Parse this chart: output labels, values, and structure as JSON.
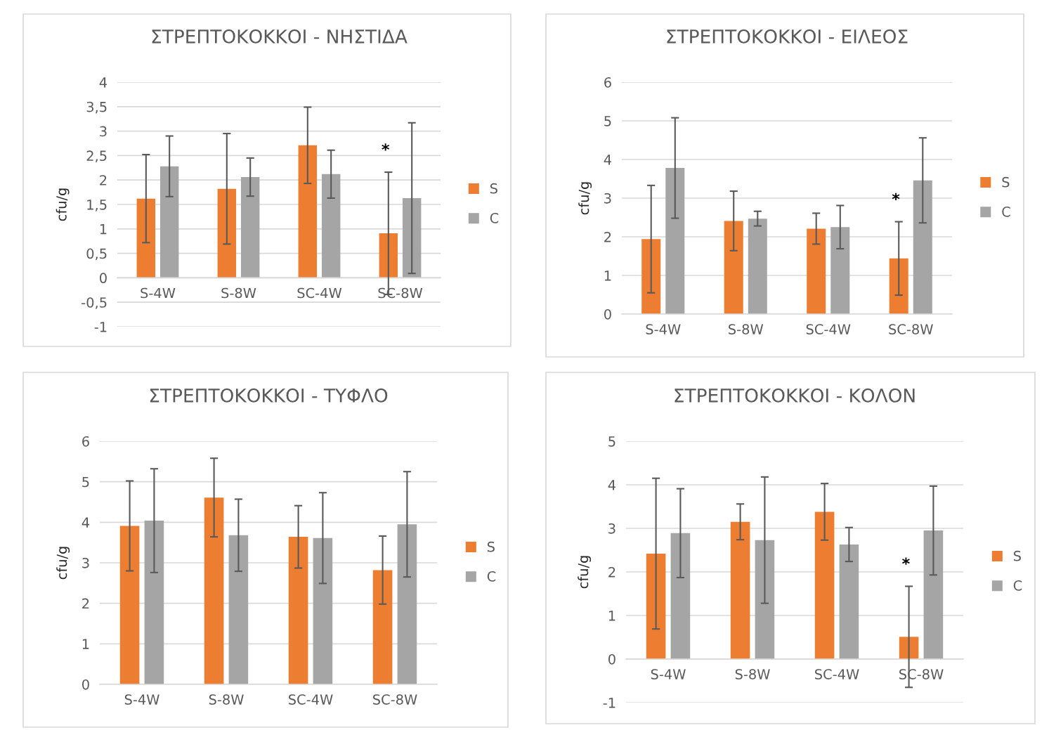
{
  "chart_data": [
    {
      "type": "bar",
      "title": "ΣΤΡΕΠΤΟΚΟΚΚΟΙ - ΝΗΣΤΙΔΑ",
      "ylabel": "cfu/g",
      "categories": [
        "S-4W",
        "S-8W",
        "SC-4W",
        "SC-8W"
      ],
      "series": [
        {
          "name": "S",
          "color": "#ed7d31",
          "values": [
            1.62,
            1.82,
            2.71,
            0.91
          ],
          "errors": [
            0.9,
            1.13,
            0.78,
            1.25
          ]
        },
        {
          "name": "C",
          "color": "#a5a5a5",
          "values": [
            2.28,
            2.06,
            2.12,
            1.63
          ],
          "errors": [
            0.62,
            0.39,
            0.49,
            1.54
          ]
        }
      ],
      "ylim": [
        -1,
        4
      ],
      "yticks": [
        -1,
        {
          "value": -0.5,
          "label": "-0,5"
        },
        0,
        {
          "value": 0.5,
          "label": "0,5"
        },
        1,
        {
          "value": 1.5,
          "label": "1,5"
        },
        2,
        {
          "value": 2.5,
          "label": "2,5"
        },
        3,
        {
          "value": 3.5,
          "label": "3,5"
        },
        4
      ],
      "grid": "y",
      "legend": "right",
      "annotations": [
        "*"
      ]
    },
    {
      "type": "bar",
      "title": "ΣΤΡΕΠΤΟΚΟΚΚΟΙ - ΕΙΛΕΟΣ",
      "ylabel": "cfu/g",
      "categories": [
        "S-4W",
        "S-8W",
        "SC-4W",
        "SC-8W"
      ],
      "series": [
        {
          "name": "S",
          "color": "#ed7d31",
          "values": [
            1.94,
            2.41,
            2.21,
            1.44
          ],
          "errors": [
            1.39,
            0.77,
            0.4,
            0.95
          ]
        },
        {
          "name": "C",
          "color": "#a5a5a5",
          "values": [
            3.78,
            2.47,
            2.25,
            3.46
          ],
          "errors": [
            1.3,
            0.19,
            0.56,
            1.1
          ]
        }
      ],
      "ylim": [
        0,
        6
      ],
      "yticks": [
        0,
        1,
        2,
        3,
        4,
        5,
        6
      ],
      "grid": "y",
      "legend": "right",
      "annotations": [
        "*"
      ]
    },
    {
      "type": "bar",
      "title": "ΣΤΡΕΠΤΟΚΟΚΚΟΙ - ΤΥΦΛΟ",
      "ylabel": "cfu/g",
      "categories": [
        "S-4W",
        "S-8W",
        "SC-4W",
        "SC-8W"
      ],
      "series": [
        {
          "name": "S",
          "color": "#ed7d31",
          "values": [
            3.91,
            4.61,
            3.64,
            2.82
          ],
          "errors": [
            1.11,
            0.97,
            0.77,
            0.84
          ]
        },
        {
          "name": "C",
          "color": "#a5a5a5",
          "values": [
            4.04,
            3.68,
            3.61,
            3.95
          ],
          "errors": [
            1.28,
            0.89,
            1.12,
            1.3
          ]
        }
      ],
      "ylim": [
        0,
        6
      ],
      "yticks": [
        0,
        1,
        2,
        3,
        4,
        5,
        6
      ],
      "grid": "y",
      "legend": "right"
    },
    {
      "type": "bar",
      "title": "ΣΤΡΕΠΤΟΚΟΚΚΟΙ - ΚΟΛΟΝ",
      "ylabel": "cfu/g",
      "categories": [
        "S-4W",
        "S-8W",
        "SC-4W",
        "SC-8W"
      ],
      "series": [
        {
          "name": "S",
          "color": "#ed7d31",
          "values": [
            2.42,
            3.15,
            3.38,
            0.51
          ],
          "errors": [
            1.73,
            0.41,
            0.65,
            1.16
          ]
        },
        {
          "name": "C",
          "color": "#a5a5a5",
          "values": [
            2.89,
            2.73,
            2.63,
            2.95
          ],
          "errors": [
            1.02,
            1.45,
            0.39,
            1.02
          ]
        }
      ],
      "ylim": [
        -1,
        5
      ],
      "yticks": [
        -1,
        0,
        1,
        2,
        3,
        4,
        5
      ],
      "grid": "y",
      "legend": "right",
      "annotations": [
        "*"
      ]
    }
  ]
}
